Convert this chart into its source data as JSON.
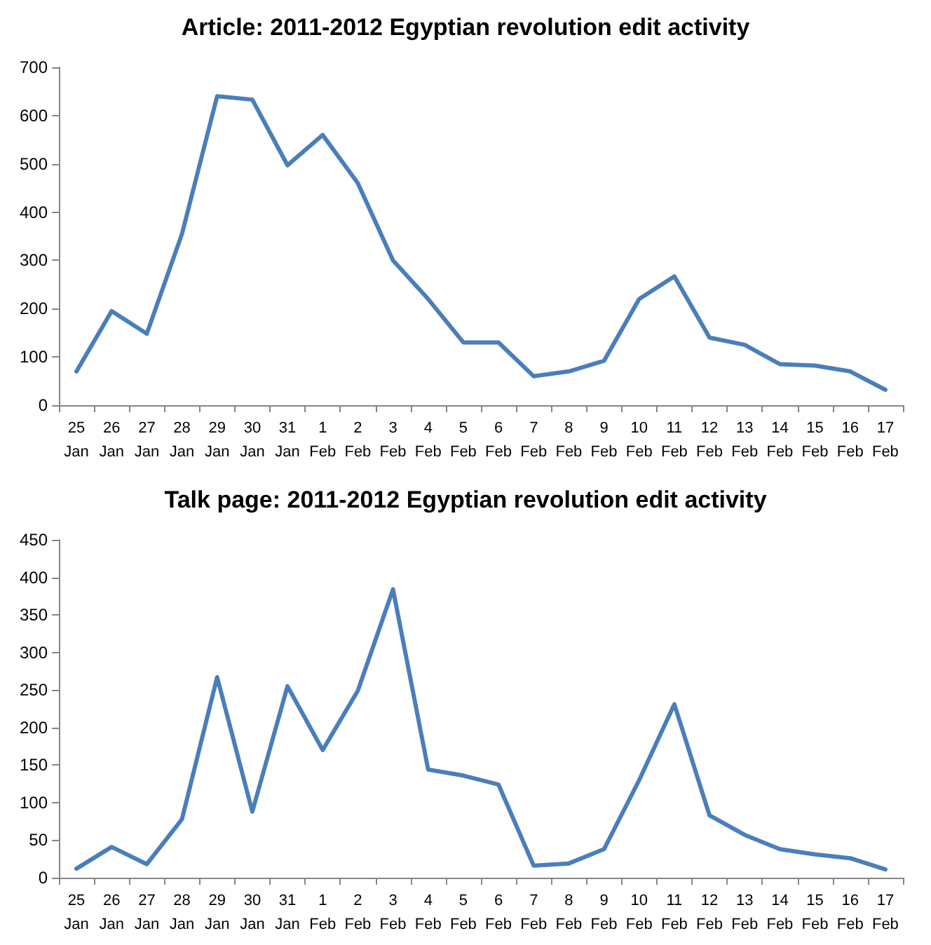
{
  "chart_data": [
    {
      "type": "line",
      "title": "Article: 2011-2012 Egyptian revolution edit activity",
      "categories": [
        "25 Jan",
        "26 Jan",
        "27 Jan",
        "28 Jan",
        "29 Jan",
        "30 Jan",
        "31 Jan",
        "1 Feb",
        "2 Feb",
        "3 Feb",
        "4 Feb",
        "5 Feb",
        "6 Feb",
        "7 Feb",
        "8 Feb",
        "9 Feb",
        "10 Feb",
        "11 Feb",
        "12 Feb",
        "13 Feb",
        "14 Feb",
        "15 Feb",
        "16 Feb",
        "17 Feb"
      ],
      "series": [
        {
          "color": "#4a7ebb",
          "values": [
            70,
            195,
            148,
            355,
            640,
            633,
            497,
            560,
            460,
            300,
            220,
            130,
            130,
            60,
            70,
            92,
            220,
            267,
            140,
            125,
            85,
            82,
            70,
            32
          ]
        }
      ],
      "ylim": [
        0,
        700
      ],
      "yticks": [
        0,
        100,
        200,
        300,
        400,
        500,
        600,
        700
      ],
      "grid": false,
      "marker": "none",
      "line_style": "solid"
    },
    {
      "type": "line",
      "title": "Talk page: 2011-2012 Egyptian revolution edit activity",
      "categories": [
        "25 Jan",
        "26 Jan",
        "27 Jan",
        "28 Jan",
        "29 Jan",
        "30 Jan",
        "31 Jan",
        "1 Feb",
        "2 Feb",
        "3 Feb",
        "4 Feb",
        "5 Feb",
        "6 Feb",
        "7 Feb",
        "8 Feb",
        "9 Feb",
        "10 Feb",
        "11 Feb",
        "12 Feb",
        "13 Feb",
        "14 Feb",
        "15 Feb",
        "16 Feb",
        "17 Feb"
      ],
      "series": [
        {
          "color": "#4a7ebb",
          "values": [
            12,
            41,
            18,
            78,
            267,
            88,
            255,
            170,
            249,
            384,
            144,
            136,
            124,
            16,
            19,
            38,
            130,
            231,
            83,
            57,
            38,
            31,
            26,
            11
          ]
        }
      ],
      "ylim": [
        0,
        450
      ],
      "yticks": [
        0,
        50,
        100,
        150,
        200,
        250,
        300,
        350,
        400,
        450
      ],
      "grid": false,
      "marker": "none",
      "line_style": "solid"
    }
  ]
}
